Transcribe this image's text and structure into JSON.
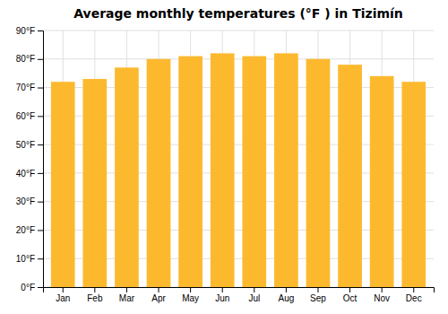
{
  "chart_data": {
    "type": "bar",
    "title": "Average monthly temperatures (°F ) in Tizimín",
    "categories": [
      "Jan",
      "Feb",
      "Mar",
      "Apr",
      "May",
      "Jun",
      "Jul",
      "Aug",
      "Sep",
      "Oct",
      "Nov",
      "Dec"
    ],
    "values": [
      72,
      73,
      77,
      80,
      81,
      82,
      81,
      82,
      80,
      78,
      74,
      72
    ],
    "color": "#FDB92E",
    "ylim": [
      0,
      90
    ],
    "yticks": [
      {
        "value": 0,
        "label": "0°F"
      },
      {
        "value": 10,
        "label": "10°F"
      },
      {
        "value": 20,
        "label": "20°F"
      },
      {
        "value": 30,
        "label": "30°F"
      },
      {
        "value": 40,
        "label": "40°F"
      },
      {
        "value": 50,
        "label": "50°F"
      },
      {
        "value": 60,
        "label": "60°F"
      },
      {
        "value": 70,
        "label": "70°F"
      },
      {
        "value": 80,
        "label": "80°F"
      },
      {
        "value": 90,
        "label": "90°F"
      }
    ],
    "grid": true
  }
}
